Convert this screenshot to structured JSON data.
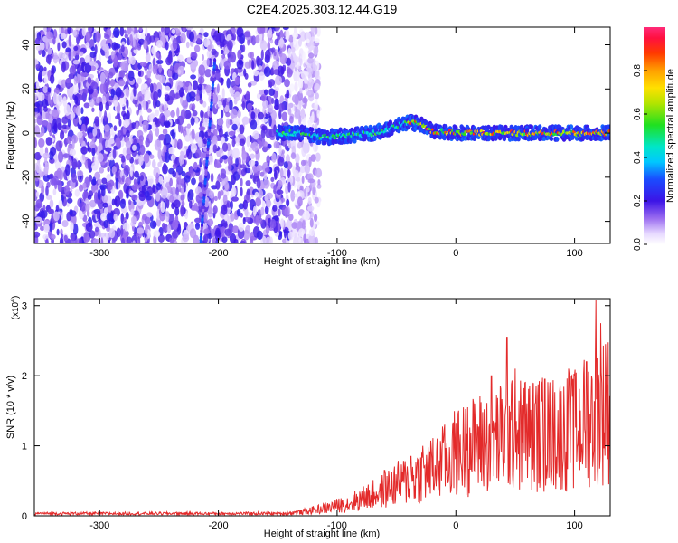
{
  "figure": {
    "title": "C2E4.2025.303.12.44.G19"
  },
  "colorbar": {
    "label": "Normalized spectral amplitude",
    "range": [
      0.0,
      1.0
    ],
    "ticks": [
      "0.0",
      "0.2",
      "0.4",
      "0.6",
      "0.8"
    ]
  },
  "chart_data": [
    {
      "type": "heatmap",
      "xlabel": "Height of straight line (km)",
      "ylabel": "Frequency (Hz)",
      "xlim": [
        -355,
        130
      ],
      "ylim": [
        -50,
        48
      ],
      "x_ticks": [
        "-300",
        "-200",
        "-100",
        "0",
        "100"
      ],
      "y_ticks": [
        "40",
        "20",
        "0",
        "-20",
        "-40"
      ],
      "x_tick_values": [
        -300,
        -200,
        -100,
        0,
        100
      ],
      "y_tick_values": [
        40,
        20,
        0,
        -20,
        -40
      ],
      "noise_region_x": [
        -355,
        -140
      ],
      "doppler_line": {
        "start": [
          -215,
          -50
        ],
        "end": [
          -203,
          33
        ]
      },
      "signal_trace": {
        "x_range": [
          -150,
          130
        ],
        "center_freq": [
          [
            -150,
            0
          ],
          [
            -130,
            0
          ],
          [
            -110,
            -2
          ],
          [
            -90,
            -1
          ],
          [
            -70,
            0
          ],
          [
            -55,
            2
          ],
          [
            -40,
            5
          ],
          [
            -30,
            4
          ],
          [
            -20,
            1
          ],
          [
            0,
            0
          ],
          [
            40,
            0
          ],
          [
            80,
            0
          ],
          [
            130,
            0
          ]
        ],
        "peak_amplitude_x_range": [
          -40,
          130
        ]
      }
    },
    {
      "type": "line",
      "xlabel": "Height of straight line (km)",
      "ylabel": "SNR (10 * v/v)",
      "y_scale_label": "(x10",
      "y_scale_exp": "4",
      "y_scale_close": ")",
      "xlim": [
        -355,
        130
      ],
      "ylim": [
        0,
        3.1
      ],
      "x_ticks": [
        "-300",
        "-200",
        "-100",
        "0",
        "100"
      ],
      "y_ticks": [
        "0",
        "1",
        "2",
        "3"
      ],
      "x_tick_values": [
        -300,
        -200,
        -100,
        0,
        100
      ],
      "y_tick_values": [
        0,
        1,
        2,
        3
      ],
      "series": [
        {
          "color": "#e32a2a",
          "envelope": [
            [
              -355,
              0.03
            ],
            [
              -150,
              0.03
            ],
            [
              -130,
              0.06
            ],
            [
              -110,
              0.12
            ],
            [
              -90,
              0.2
            ],
            [
              -70,
              0.33
            ],
            [
              -50,
              0.5
            ],
            [
              -30,
              0.65
            ],
            [
              -15,
              0.78
            ],
            [
              0,
              1.0
            ],
            [
              20,
              1.15
            ],
            [
              40,
              1.25
            ],
            [
              60,
              1.3
            ],
            [
              80,
              1.3
            ],
            [
              100,
              1.35
            ],
            [
              115,
              1.6
            ],
            [
              130,
              1.7
            ]
          ],
          "spikes": [
            [
              -75,
              0.4
            ],
            [
              -60,
              0.65
            ],
            [
              -45,
              0.63
            ],
            [
              -38,
              0.85
            ],
            [
              -28,
              1.0
            ],
            [
              -22,
              0.92
            ],
            [
              -10,
              1.23
            ],
            [
              10,
              1.55
            ],
            [
              30,
              2.0
            ],
            [
              43,
              2.55
            ],
            [
              50,
              2.1
            ],
            [
              58,
              1.9
            ],
            [
              75,
              1.95
            ],
            [
              95,
              2.1
            ],
            [
              100,
              2.0
            ],
            [
              110,
              2.2
            ],
            [
              118,
              3.08
            ],
            [
              122,
              2.75
            ],
            [
              126,
              2.45
            ]
          ]
        }
      ]
    }
  ]
}
